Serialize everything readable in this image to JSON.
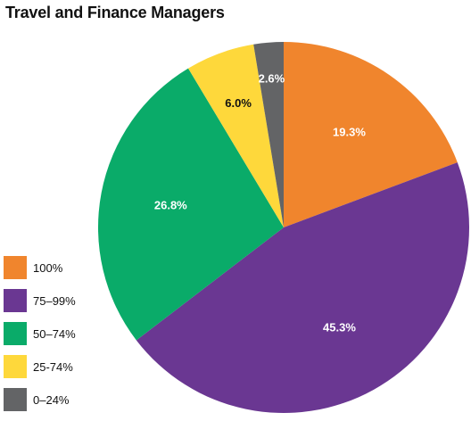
{
  "title": "Travel and Finance Managers",
  "chart_data": {
    "type": "pie",
    "title": "Travel and Finance Managers",
    "slices": [
      {
        "label": "100%",
        "value": 19.3,
        "display": "19.3%",
        "color": "#f0852d",
        "text_color": "#ffffff"
      },
      {
        "label": "75–99%",
        "value": 45.3,
        "display": "45.3%",
        "color": "#6a3792",
        "text_color": "#ffffff"
      },
      {
        "label": "50–74%",
        "value": 26.8,
        "display": "26.8%",
        "color": "#0aab69",
        "text_color": "#ffffff"
      },
      {
        "label": "25-74%",
        "value": 6.0,
        "display": "6.0%",
        "color": "#fed83b",
        "text_color": "#111111"
      },
      {
        "label": "0–24%",
        "value": 2.6,
        "display": "2.6%",
        "color": "#636466",
        "text_color": "#ffffff"
      }
    ],
    "start": "12 o'clock",
    "direction": "clockwise",
    "legend_position": "bottom-left"
  }
}
